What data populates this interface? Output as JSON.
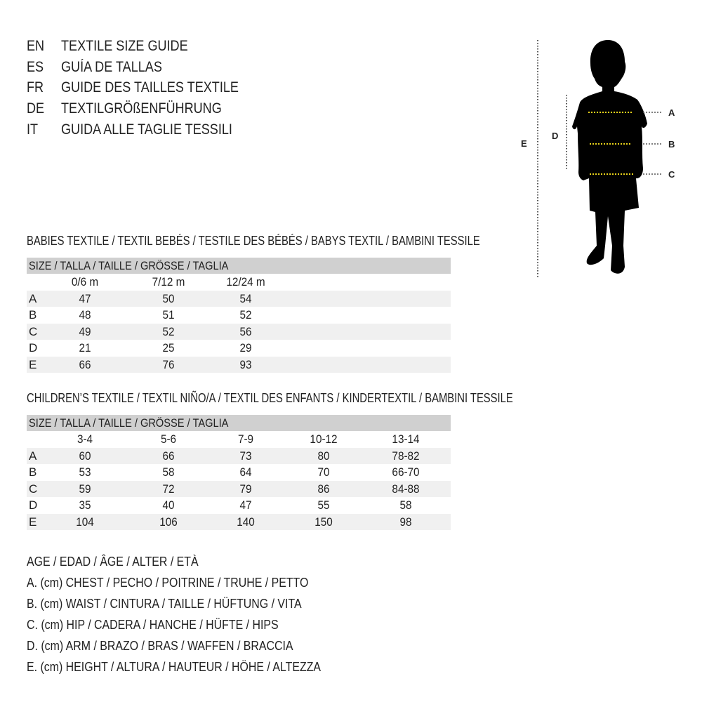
{
  "titles": [
    {
      "code": "EN",
      "text": "TEXTILE SIZE GUIDE"
    },
    {
      "code": "ES",
      "text": "GUÍA DE TALLAS"
    },
    {
      "code": "FR",
      "text": "GUIDE DES TAILLES TEXTILE"
    },
    {
      "code": "DE",
      "text": "TEXTILGRÖßENFÜHRUNG"
    },
    {
      "code": "IT",
      "text": "GUIDA ALLE TAGLIE TESSILI"
    }
  ],
  "figure": {
    "labels": {
      "a": "A",
      "b": "B",
      "c": "C",
      "d": "D",
      "e": "E"
    },
    "measure_color": "#e8d21a"
  },
  "babies": {
    "heading": "BABIES TEXTILE / TEXTIL BEBÉS / TESTILE DES BÉBÉS / BABYS TEXTIL / BAMBINI TESSILE",
    "size_header": "SIZE / TALLA / TAILLE / GRÖSSE / TAGLIA",
    "columns": [
      "0/6 m",
      "7/12 m",
      "12/24 m"
    ],
    "rows": [
      {
        "label": "A",
        "values": [
          "47",
          "50",
          "54"
        ]
      },
      {
        "label": "B",
        "values": [
          "48",
          "51",
          "52"
        ]
      },
      {
        "label": "C",
        "values": [
          "49",
          "52",
          "56"
        ]
      },
      {
        "label": "D",
        "values": [
          "21",
          "25",
          "29"
        ]
      },
      {
        "label": "E",
        "values": [
          "66",
          "76",
          "93"
        ]
      }
    ]
  },
  "children": {
    "heading": "CHILDREN’S TEXTILE / TEXTIL NIÑO/A / TEXTIL DES ENFANTS / KINDERTEXTIL / BAMBINI TESSILE",
    "size_header": "SIZE / TALLA / TAILLE / GRÖSSE / TAGLIA",
    "columns": [
      "3-4",
      "5-6",
      "7-9",
      "10-12",
      "13-14"
    ],
    "rows": [
      {
        "label": "A",
        "values": [
          "60",
          "66",
          "73",
          "80",
          "78-82"
        ]
      },
      {
        "label": "B",
        "values": [
          "53",
          "58",
          "64",
          "70",
          "66-70"
        ]
      },
      {
        "label": "C",
        "values": [
          "59",
          "72",
          "79",
          "86",
          "84-88"
        ]
      },
      {
        "label": "D",
        "values": [
          "35",
          "40",
          "47",
          "55",
          "58"
        ]
      },
      {
        "label": "E",
        "values": [
          "104",
          "106",
          "140",
          "150",
          "98"
        ]
      }
    ]
  },
  "legend": [
    "AGE / EDAD / ÂGE / ALTER / ETÀ",
    "A. (cm) CHEST / PECHO / POITRINE / TRUHE / PETTO",
    "B. (cm) WAIST / CINTURA / TAILLE / HÜFTUNG / VITA",
    "C. (cm) HIP / CADERA / HANCHE / HÜFTE / HIPS",
    "D. (cm) ARM / BRAZO / BRAS / WAFFEN / BRACCIA",
    "E. (cm) HEIGHT / ALTURA / HAUTEUR / HÖHE / ALTEZZA"
  ]
}
